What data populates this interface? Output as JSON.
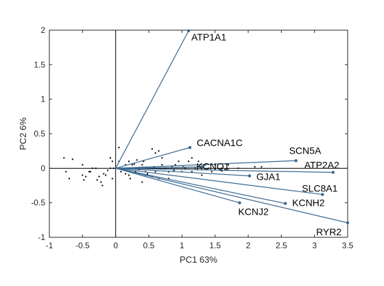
{
  "chart_data": {
    "type": "scatter",
    "subtype": "pca-biplot",
    "title": "",
    "xlabel": "PC1 63%",
    "ylabel": "PC2 6%",
    "xlim": [
      -1,
      3.5
    ],
    "ylim": [
      -1,
      2
    ],
    "xticks": [
      "-1",
      "-0.5",
      "0",
      "0.5",
      "1",
      "1.5",
      "2",
      "2.5",
      "3",
      "3.5"
    ],
    "yticks": [
      "-1",
      "-0.5",
      "0",
      "0.5",
      "1",
      "1.5",
      "2"
    ],
    "grid": false,
    "box": true,
    "colors": {
      "vector": "#3a6890",
      "points": "#000000",
      "axes": "#262626"
    },
    "vectors": [
      {
        "name": "ATP1A1",
        "x": 1.1,
        "y": 1.99
      },
      {
        "name": "CACNA1C",
        "x": 1.12,
        "y": 0.3
      },
      {
        "name": "SCN5A",
        "x": 2.72,
        "y": 0.11
      },
      {
        "name": "KCNQ1",
        "x": 1.3,
        "y": 0.02
      },
      {
        "name": "ATP2A2",
        "x": 3.28,
        "y": -0.06
      },
      {
        "name": "GJA1",
        "x": 2.02,
        "y": -0.11
      },
      {
        "name": "SLC8A1",
        "x": 3.12,
        "y": -0.38
      },
      {
        "name": "KCNH2",
        "x": 2.56,
        "y": -0.51
      },
      {
        "name": "KCNJ2",
        "x": 1.87,
        "y": -0.5
      },
      {
        "name": "RYR2",
        "x": 3.5,
        "y": -0.79
      }
    ],
    "points": [
      [
        -0.78,
        0.15
      ],
      [
        -0.65,
        0.13
      ],
      [
        -0.5,
        0.05
      ],
      [
        -0.75,
        -0.05
      ],
      [
        -0.7,
        -0.15
      ],
      [
        -0.5,
        -0.1
      ],
      [
        -0.45,
        -0.12
      ],
      [
        -0.48,
        -0.17
      ],
      [
        -0.4,
        -0.05
      ],
      [
        -0.3,
        0.0
      ],
      [
        -0.28,
        -0.17
      ],
      [
        -0.25,
        -0.12
      ],
      [
        -0.22,
        -0.2
      ],
      [
        -0.2,
        -0.25
      ],
      [
        -0.15,
        -0.1
      ],
      [
        -0.12,
        -0.03
      ],
      [
        -0.08,
        0.0
      ],
      [
        -0.08,
        0.15
      ],
      [
        -0.05,
        0.1
      ],
      [
        -0.03,
        0.0
      ],
      [
        -0.05,
        -0.15
      ],
      [
        -0.18,
        -0.08
      ],
      [
        -0.35,
        0.0
      ],
      [
        -0.38,
        -0.05
      ],
      [
        0.05,
        0.3
      ],
      [
        0.05,
        0.1
      ],
      [
        0.1,
        0.0
      ],
      [
        0.15,
        -0.08
      ],
      [
        0.2,
        -0.1
      ],
      [
        0.22,
        -0.15
      ],
      [
        0.25,
        0.05
      ],
      [
        0.3,
        0.0
      ],
      [
        0.35,
        -0.02
      ],
      [
        0.4,
        0.05
      ],
      [
        0.45,
        -0.05
      ],
      [
        0.5,
        0.0
      ],
      [
        0.55,
        0.28
      ],
      [
        0.6,
        0.22
      ],
      [
        0.65,
        0.25
      ],
      [
        0.7,
        0.05
      ],
      [
        0.7,
        0.15
      ],
      [
        0.75,
        0.0
      ],
      [
        0.8,
        -0.05
      ],
      [
        0.85,
        0.02
      ],
      [
        0.9,
        0.05
      ],
      [
        0.95,
        0.1
      ],
      [
        1.0,
        -0.05
      ],
      [
        1.05,
        0.0
      ],
      [
        1.1,
        0.1
      ],
      [
        1.15,
        0.15
      ],
      [
        1.15,
        -0.05
      ],
      [
        1.2,
        0.0
      ],
      [
        1.25,
        0.1
      ],
      [
        1.3,
        -0.1
      ],
      [
        1.35,
        0.05
      ],
      [
        1.4,
        0.0
      ],
      [
        1.45,
        -0.05
      ],
      [
        1.5,
        0.05
      ],
      [
        1.6,
        0.0
      ],
      [
        1.65,
        -0.02
      ],
      [
        1.7,
        0.05
      ],
      [
        1.85,
        0.0
      ],
      [
        2.1,
        0.02
      ],
      [
        2.2,
        0.02
      ],
      [
        0.3,
        -0.05
      ],
      [
        0.45,
        -0.1
      ],
      [
        0.55,
        -0.12
      ],
      [
        0.6,
        -0.05
      ],
      [
        0.65,
        -0.15
      ],
      [
        0.8,
        -0.15
      ],
      [
        0.4,
        -0.2
      ],
      [
        0.15,
        0.05
      ],
      [
        0.2,
        0.1
      ],
      [
        0.32,
        0.12
      ],
      [
        0.42,
        0.1
      ],
      [
        0.48,
        -0.08
      ],
      [
        0.12,
        -0.02
      ],
      [
        0.58,
        0.02
      ],
      [
        0.88,
        -0.03
      ],
      [
        1.02,
        0.02
      ],
      [
        0.08,
        -0.05
      ],
      [
        0.28,
        0.06
      ]
    ]
  }
}
